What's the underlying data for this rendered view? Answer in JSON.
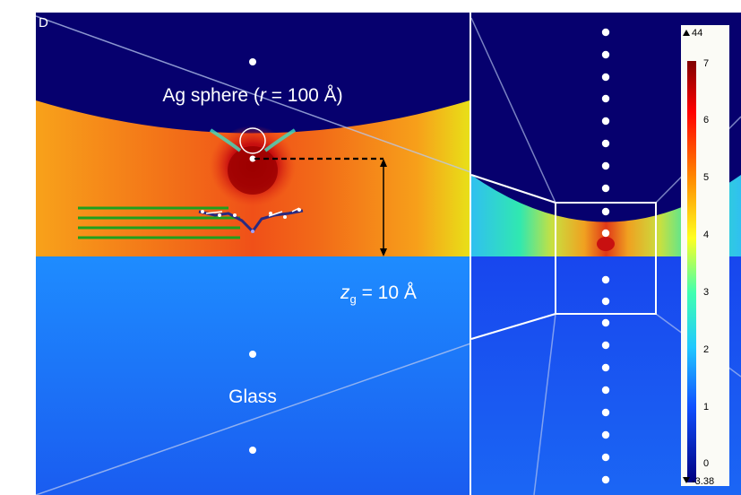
{
  "panel_letter": "D",
  "sphere_label": {
    "prefix": "Ag sphere (",
    "symbol": "r",
    "suffix": " = 100 Å)"
  },
  "gap_label": {
    "symbol": "z",
    "subscript": "g",
    "suffix": " = 10 Å"
  },
  "substrate_label": "Glass",
  "colorbar": {
    "max_label": "44",
    "min_label": "-3.38",
    "ticks": [
      "7",
      "6",
      "5",
      "4",
      "3",
      "2",
      "1",
      "0"
    ],
    "top_color": "#8b0000",
    "bottom_color": "#00007f"
  }
}
